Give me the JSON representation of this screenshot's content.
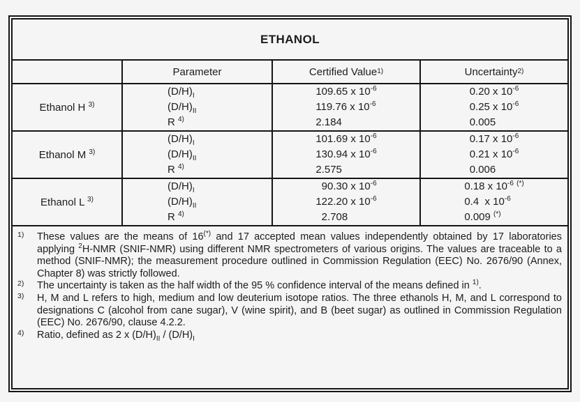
{
  "colors": {
    "background": "#f5f5f6",
    "border": "#141414",
    "text": "#1c1c1c"
  },
  "table": {
    "title": "ETHANOL",
    "columns": [
      "",
      "Parameter",
      "Certified Value ^{1)}",
      "Uncertainty ^{2)}"
    ],
    "rows": [
      {
        "label": "Ethanol H ^{3)}",
        "parameters": [
          "(D/H)_{I}",
          "(D/H)_{II}",
          "R ^{4)}"
        ],
        "certified_values": [
          "109.65 x 10^{-6}",
          "119.76 x 10^{-6}",
          "2.184"
        ],
        "uncertainties": [
          "0.20 x 10^{-6}",
          "0.25 x 10^{-6}",
          "0.005"
        ]
      },
      {
        "label": "Ethanol M ^{3)}",
        "parameters": [
          "(D/H)_{I}",
          "(D/H)_{II}",
          "R ^{4)}"
        ],
        "certified_values": [
          "101.69 x 10^{-6}",
          "130.94 x 10^{-6}",
          "2.575"
        ],
        "uncertainties": [
          "0.17 x 10^{-6}",
          "0.21 x 10^{-6}",
          "0.006"
        ]
      },
      {
        "label": "Ethanol L ^{3)}",
        "parameters": [
          "(D/H)_{I}",
          "(D/H)_{II}",
          "R ^{4)}"
        ],
        "certified_values": [
          "  90.30 x 10^{-6}",
          "122.20 x 10^{-6}",
          "  2.708"
        ],
        "uncertainties": [
          "0.18 x 10^{-6} ^{(*)}",
          "0.4  x 10^{-6}",
          "0.009 ^{(*)}"
        ]
      }
    ],
    "footnotes": [
      {
        "marker": "1)",
        "text": "These values are the means of 16^{(*)} and 17 accepted mean values independently obtained by 17 laboratories applying ^{2}H-NMR (SNIF-NMR) using different NMR spectrometers of various origins. The values are traceable to a method (SNIF-NMR); the measurement procedure outlined in Commission Regulation (EEC) No. 2676/90 (Annex, Chapter 8) was strictly followed."
      },
      {
        "marker": "2)",
        "text": "The uncertainty is taken as the half width of the 95 % confidence interval of the means defined in ^{1)}."
      },
      {
        "marker": "3)",
        "text": "H, M and L refers to high, medium and low deuterium isotope ratios. The three ethanols H, M, and L correspond to designations C (alcohol from cane sugar), V (wine spirit), and B (beet sugar) as outlined in Commission Regulation (EEC) No. 2676/90, clause 4.2.2."
      },
      {
        "marker": "4)",
        "text": "Ratio, defined as 2 x (D/H)_{II} / (D/H)_{I}"
      }
    ]
  }
}
